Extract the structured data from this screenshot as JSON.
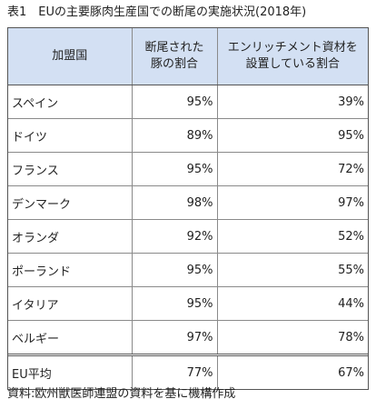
{
  "caption": "表1　EUの主要豚肉生産国での断尾の実施状況(2018年)",
  "header": {
    "country": "加盟国",
    "tail_docking_line1": "断尾された",
    "tail_docking_line2": "豚の割合",
    "enrichment_line1": "エンリッチメント資材を",
    "enrichment_line2": "設置している割合"
  },
  "rows": [
    {
      "country": "スペイン",
      "tail_docking": "95%",
      "enrichment": "39%"
    },
    {
      "country": "ドイツ",
      "tail_docking": "89%",
      "enrichment": "95%"
    },
    {
      "country": "フランス",
      "tail_docking": "95%",
      "enrichment": "72%"
    },
    {
      "country": "デンマーク",
      "tail_docking": "98%",
      "enrichment": "97%"
    },
    {
      "country": "オランダ",
      "tail_docking": "92%",
      "enrichment": "52%"
    },
    {
      "country": "ポーランド",
      "tail_docking": "95%",
      "enrichment": "55%"
    },
    {
      "country": "イタリア",
      "tail_docking": "95%",
      "enrichment": "44%"
    },
    {
      "country": "ベルギー",
      "tail_docking": "97%",
      "enrichment": "78%"
    }
  ],
  "average": {
    "country": "EU平均",
    "tail_docking": "77%",
    "enrichment": "67%"
  },
  "source": "資料:欧州獣医師連盟の資料を基に機構作成",
  "colors": {
    "header_bg": "#d3e0f3",
    "border": "#555555"
  }
}
